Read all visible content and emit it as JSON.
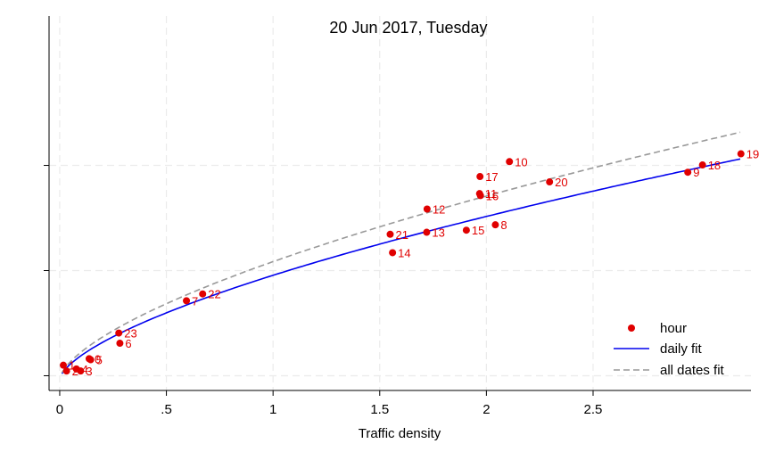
{
  "chart_data": {
    "type": "scatter",
    "title": "20 Jun 2017, Tuesday",
    "xlabel": "Traffic density",
    "ylabel": "",
    "xlim": [
      -0.05,
      3.24
    ],
    "ylim": [
      -0.14,
      3.42
    ],
    "x_ticks": [
      {
        "value": 0,
        "label": "0"
      },
      {
        "value": 0.5,
        "label": ".5"
      },
      {
        "value": 1,
        "label": "1"
      },
      {
        "value": 1.5,
        "label": "1.5"
      },
      {
        "value": 2,
        "label": "2"
      },
      {
        "value": 2.5,
        "label": "2.5"
      }
    ],
    "y_ticks": [
      0,
      1,
      2
    ],
    "grid": true,
    "legend_position": "bottom-right",
    "legend": [
      {
        "label": "hour",
        "kind": "marker"
      },
      {
        "label": "daily fit",
        "kind": "solid-line"
      },
      {
        "label": "all dates fit",
        "kind": "dashed-line"
      }
    ],
    "colors": {
      "points": "#e00000",
      "daily_fit": "#0000ee",
      "all_dates_fit": "#999999",
      "grid": "#ebebeb"
    },
    "points": [
      {
        "label": "0",
        "x": 0.138,
        "y": 0.162
      },
      {
        "label": "1",
        "x": 0.017,
        "y": 0.1
      },
      {
        "label": "2",
        "x": 0.032,
        "y": 0.045
      },
      {
        "label": "3",
        "x": 0.098,
        "y": 0.045
      },
      {
        "label": "4",
        "x": 0.078,
        "y": 0.065
      },
      {
        "label": "5",
        "x": 0.145,
        "y": 0.152
      },
      {
        "label": "6",
        "x": 0.282,
        "y": 0.309
      },
      {
        "label": "7",
        "x": 0.594,
        "y": 0.713
      },
      {
        "label": "8",
        "x": 2.042,
        "y": 1.435
      },
      {
        "label": "9",
        "x": 2.944,
        "y": 1.935
      },
      {
        "label": "10",
        "x": 2.108,
        "y": 2.036
      },
      {
        "label": "11",
        "x": 1.968,
        "y": 1.732
      },
      {
        "label": "12",
        "x": 1.722,
        "y": 1.585
      },
      {
        "label": "13",
        "x": 1.72,
        "y": 1.364
      },
      {
        "label": "14",
        "x": 1.56,
        "y": 1.17
      },
      {
        "label": "15",
        "x": 1.906,
        "y": 1.384
      },
      {
        "label": "16",
        "x": 1.972,
        "y": 1.713
      },
      {
        "label": "17",
        "x": 1.97,
        "y": 1.894
      },
      {
        "label": "18",
        "x": 3.013,
        "y": 2.004
      },
      {
        "label": "19",
        "x": 3.193,
        "y": 2.11
      },
      {
        "label": "20",
        "x": 2.296,
        "y": 1.843
      },
      {
        "label": "21",
        "x": 1.549,
        "y": 1.345
      },
      {
        "label": "22",
        "x": 0.67,
        "y": 0.778
      },
      {
        "label": "23",
        "x": 0.277,
        "y": 0.406
      }
    ],
    "fits": [
      {
        "name": "daily fit",
        "a": 0.985,
        "b": 0.649,
        "style": "solid"
      },
      {
        "name": "all dates fit",
        "a": 1.115,
        "b": 0.641,
        "style": "dashed"
      }
    ]
  }
}
